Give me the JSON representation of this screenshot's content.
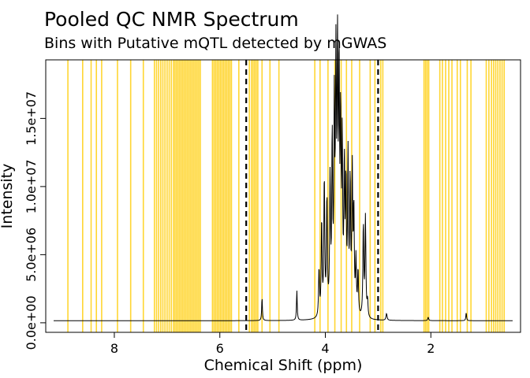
{
  "chart_data": {
    "type": "line",
    "title": "Pooled QC NMR Spectrum",
    "subtitle": "Bins with Putative mQTL detected by mGWAS",
    "xlabel": "Chemical Shift (ppm)",
    "ylabel": "Intensity",
    "xlim": [
      9.3,
      0.3
    ],
    "ylim": [
      -700000,
      19300000
    ],
    "x_ticks": [
      {
        "value": 8,
        "label": "8"
      },
      {
        "value": 6,
        "label": "6"
      },
      {
        "value": 4,
        "label": "4"
      },
      {
        "value": 2,
        "label": "2"
      }
    ],
    "y_ticks": [
      {
        "value": 0,
        "label": "0.0e+00"
      },
      {
        "value": 5000000,
        "label": "5.0e+06"
      },
      {
        "value": 10000000,
        "label": "1.0e+07"
      },
      {
        "value": 15000000,
        "label": "1.5e+07"
      }
    ],
    "highlight_color": "#FFD633",
    "line_color": "#000000",
    "dashed_lines": [
      5.5,
      3.0
    ],
    "mqtl_bins": [
      8.88,
      8.6,
      8.44,
      8.34,
      8.24,
      7.94,
      7.69,
      7.45,
      7.24,
      7.2,
      7.16,
      7.12,
      7.08,
      7.04,
      7.0,
      6.96,
      6.92,
      6.88,
      6.85,
      6.82,
      6.79,
      6.76,
      6.73,
      6.7,
      6.67,
      6.64,
      6.61,
      6.58,
      6.55,
      6.52,
      6.49,
      6.46,
      6.43,
      6.4,
      6.37,
      6.14,
      6.11,
      6.08,
      6.05,
      6.02,
      5.99,
      5.96,
      5.93,
      5.9,
      5.87,
      5.84,
      5.81,
      5.78,
      5.64,
      5.44,
      5.4,
      5.37,
      5.34,
      5.31,
      5.28,
      5.2,
      5.05,
      4.88,
      4.2,
      4.1,
      3.95,
      3.82,
      3.7,
      3.6,
      3.5,
      3.35,
      3.15,
      3.06,
      2.95,
      2.91,
      2.13,
      2.1,
      2.07,
      2.04,
      1.83,
      1.78,
      1.72,
      1.66,
      1.6,
      1.5,
      1.44,
      1.31,
      1.24,
      0.95,
      0.9,
      0.85,
      0.81,
      0.77,
      0.73,
      0.69,
      0.65,
      0.61
    ],
    "baseline": 150000,
    "peaks": [
      {
        "ppm": 5.2,
        "height": 1700000,
        "width": 0.008
      },
      {
        "ppm": 4.54,
        "height": 2200000,
        "width": 0.008
      },
      {
        "ppm": 4.12,
        "height": 3500000,
        "width": 0.01
      },
      {
        "ppm": 4.07,
        "height": 7000000,
        "width": 0.01
      },
      {
        "ppm": 4.02,
        "height": 10100000,
        "width": 0.01
      },
      {
        "ppm": 3.97,
        "height": 8500000,
        "width": 0.01
      },
      {
        "ppm": 3.91,
        "height": 9800000,
        "width": 0.01
      },
      {
        "ppm": 3.87,
        "height": 12500000,
        "width": 0.01
      },
      {
        "ppm": 3.83,
        "height": 14500000,
        "width": 0.01
      },
      {
        "ppm": 3.8,
        "height": 17300000,
        "width": 0.01
      },
      {
        "ppm": 3.77,
        "height": 18200000,
        "width": 0.01
      },
      {
        "ppm": 3.74,
        "height": 16800000,
        "width": 0.01
      },
      {
        "ppm": 3.71,
        "height": 13200000,
        "width": 0.01
      },
      {
        "ppm": 3.68,
        "height": 11800000,
        "width": 0.01
      },
      {
        "ppm": 3.64,
        "height": 10300000,
        "width": 0.01
      },
      {
        "ppm": 3.61,
        "height": 9000000,
        "width": 0.01
      },
      {
        "ppm": 3.57,
        "height": 11300000,
        "width": 0.01
      },
      {
        "ppm": 3.53,
        "height": 9500000,
        "width": 0.01
      },
      {
        "ppm": 3.49,
        "height": 10400000,
        "width": 0.01
      },
      {
        "ppm": 3.46,
        "height": 7500000,
        "width": 0.01
      },
      {
        "ppm": 3.42,
        "height": 4000000,
        "width": 0.01
      },
      {
        "ppm": 3.38,
        "height": 3300000,
        "width": 0.01
      },
      {
        "ppm": 3.28,
        "height": 6800000,
        "width": 0.01
      },
      {
        "ppm": 3.24,
        "height": 7300000,
        "width": 0.01
      },
      {
        "ppm": 3.2,
        "height": 1200000,
        "width": 0.01
      },
      {
        "ppm": 2.84,
        "height": 500000,
        "width": 0.012
      },
      {
        "ppm": 2.05,
        "height": 250000,
        "width": 0.01
      },
      {
        "ppm": 1.33,
        "height": 600000,
        "width": 0.008
      }
    ]
  }
}
